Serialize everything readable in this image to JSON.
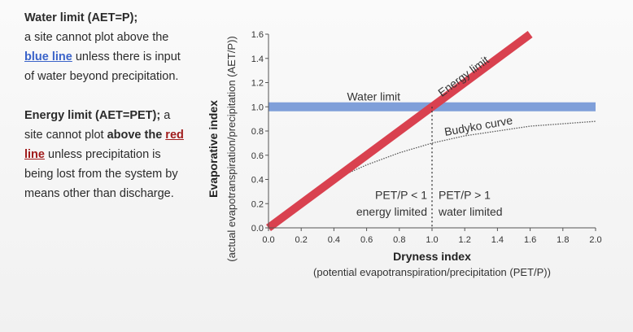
{
  "side_text": {
    "water_title": "Water limit (AET=P);",
    "water_body_1": "a site cannot plot above the",
    "water_blue": "blue line",
    "water_body_2": "unless there is input of water beyond precipitation.",
    "energy_title": "Energy limit (AET=PET);",
    "energy_body_1": "a site cannot plot",
    "energy_bold": "above the",
    "energy_red": "red line",
    "energy_body_2": "unless precipitation is being lost from the system by means other than discharge."
  },
  "chart_data": {
    "type": "line",
    "xlabel": "Dryness index",
    "xlabel_sub": "(potential evapotranspiration/precipitation (PET/P))",
    "ylabel": "Evaporative index",
    "ylabel_sub": "(actual evapotranspiration/precipitation (AET/P))",
    "xlim": [
      0,
      2.0
    ],
    "ylim": [
      0,
      1.6
    ],
    "x_ticks": [
      "0.0",
      "0.2",
      "0.4",
      "0.6",
      "0.8",
      "1.0",
      "1.2",
      "1.4",
      "1.6",
      "1.8",
      "2.0"
    ],
    "y_ticks": [
      "0.0",
      "0.2",
      "0.4",
      "0.6",
      "0.8",
      "1.0",
      "1.2",
      "1.4",
      "1.6"
    ],
    "series": [
      {
        "name": "Energy limit",
        "color": "#d9414f",
        "x": [
          0,
          1.6
        ],
        "y": [
          0,
          1.6
        ]
      },
      {
        "name": "Water limit",
        "color": "#7f9fd9",
        "x": [
          0,
          2.0
        ],
        "y": [
          1.0,
          1.0
        ]
      },
      {
        "name": "Budyko curve",
        "color": "#555555",
        "x": [
          0.4,
          0.5,
          0.6,
          0.7,
          0.8,
          0.9,
          1.0,
          1.2,
          1.4,
          1.6,
          1.8,
          2.0
        ],
        "y": [
          0.4,
          0.46,
          0.52,
          0.57,
          0.62,
          0.66,
          0.7,
          0.76,
          0.8,
          0.84,
          0.86,
          0.88
        ]
      }
    ],
    "divider_x": 1.0,
    "annotations": {
      "left_top": "PET/P < 1",
      "left_bottom": "energy limited",
      "right_top": "PET/P > 1",
      "right_bottom": "water limited"
    }
  }
}
